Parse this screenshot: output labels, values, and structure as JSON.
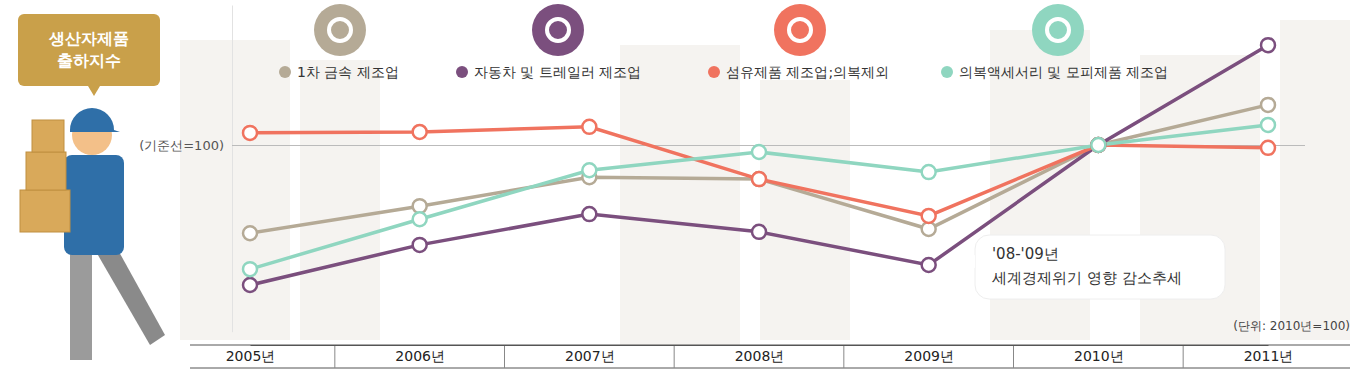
{
  "chart_data": {
    "type": "line",
    "title": "생산자제품 출하지수",
    "subtitle": "(단위: 2010년=100)",
    "annotations": [
      "'08-'09년",
      "세계경제위기 영향 감소추세"
    ],
    "categories": [
      "2005년",
      "2006년",
      "2007년",
      "2008년",
      "2009년",
      "2010년",
      "2011년"
    ],
    "series": [
      {
        "name": "1차 금속 제조업",
        "color": "#b5aa96",
        "values": [
          81.1,
          86.9,
          93.1,
          92.7,
          82.0,
          100,
          108.6
        ]
      },
      {
        "name": "자동차 및 트레일러 제조업",
        "color": "#7b4f7e",
        "values": [
          70.0,
          78.6,
          85.2,
          81.4,
          74.3,
          100,
          121.4
        ]
      },
      {
        "name": "섬유제품 제조업;의복제외",
        "color": "#f0735f",
        "values": [
          102.6,
          102.8,
          103.9,
          92.7,
          84.8,
          100,
          99.4
        ]
      },
      {
        "name": "의복액세서리 및 모피제품 제조업",
        "color": "#8fd6c0",
        "values": [
          73.4,
          84.1,
          94.6,
          98.5,
          94.2,
          100,
          104.3
        ]
      }
    ],
    "ylim": [
      60,
      130
    ],
    "yticks": [
      {
        "value": 100,
        "label": "(기준선=100)"
      }
    ],
    "tick_labels": "x",
    "marker": "circle",
    "legend": "top"
  }
}
